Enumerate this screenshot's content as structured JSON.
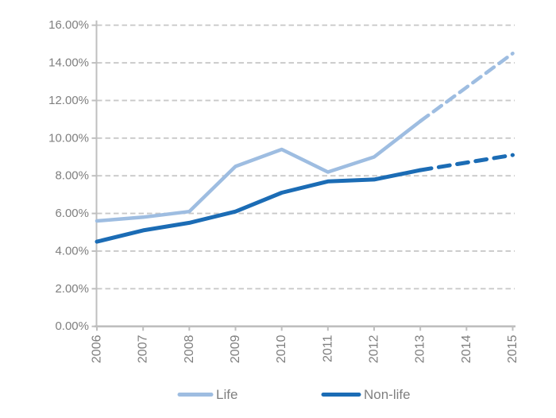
{
  "chart_data": {
    "type": "line",
    "title": "",
    "x_labels": [
      "2006",
      "2007",
      "2008",
      "2009",
      "2010",
      "2011",
      "2012",
      "2013",
      "2014",
      "2015"
    ],
    "y_tick_labels": [
      "0.00%",
      "2.00%",
      "4.00%",
      "6.00%",
      "8.00%",
      "10.00%",
      "12.00%",
      "14.00%",
      "16.00%"
    ],
    "ylim": [
      0,
      16
    ],
    "ytick_step": 2,
    "grid": "horizontal-dashed",
    "legend_position": "bottom",
    "series": [
      {
        "name": "Life",
        "color": "#9EBDE1",
        "values": [
          5.6,
          5.8,
          6.1,
          8.5,
          9.4,
          8.2,
          9.0,
          10.9,
          12.7,
          14.5
        ],
        "dash_from_index": 7
      },
      {
        "name": "Non-life",
        "color": "#1B6CB5",
        "values": [
          4.5,
          5.1,
          5.5,
          6.1,
          7.1,
          7.7,
          7.8,
          8.3,
          8.7,
          9.1
        ],
        "dash_from_index": 7
      }
    ]
  },
  "legend": {
    "items": [
      {
        "label": "Life"
      },
      {
        "label": "Non-life"
      }
    ]
  },
  "colors": {
    "background": "#FFFFFF",
    "axis": "#BFBFBF",
    "gridline": "#C9C9C9",
    "tick_text": "#7F7F7F",
    "legend_text": "#7F7F7F"
  }
}
